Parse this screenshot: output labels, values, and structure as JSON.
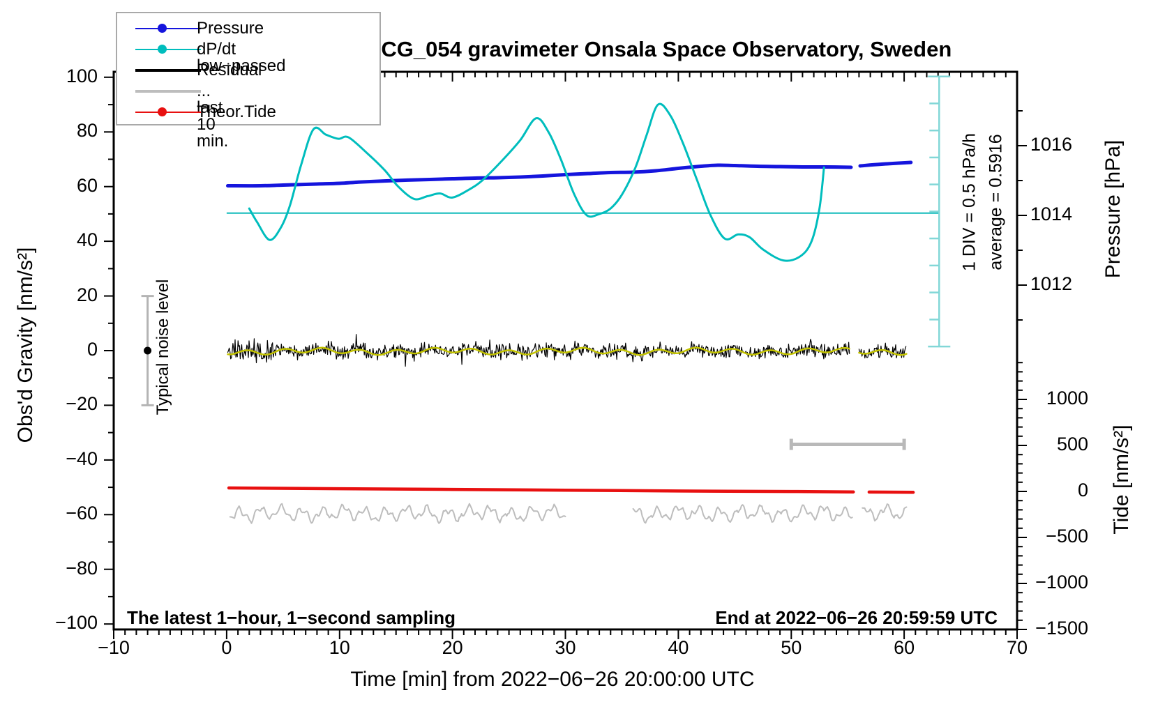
{
  "chart_data": {
    "type": "line",
    "title": "SCG_054 gravimeter Onsala Space Observatory, Sweden",
    "xlabel": "Time [min] from 2022−06−26 20:00:00 UTC",
    "footer_left": "The latest 1−hour, 1−second sampling",
    "footer_right": "End at 2022−06−26 20:59:59 UTC",
    "x_axis": {
      "range": [
        -10,
        70
      ],
      "major_ticks": [
        -10,
        0,
        10,
        20,
        30,
        40,
        50,
        60,
        70
      ],
      "minor_step": 1
    },
    "left_axis": {
      "label": "Obs'd Gravity [nm/s²]",
      "range": [
        -102,
        102
      ],
      "major_ticks": [
        -100,
        -80,
        -60,
        -40,
        -20,
        0,
        20,
        40,
        60,
        80,
        100
      ],
      "minor_step": 10
    },
    "right_pressure_axis": {
      "label": "Pressure [hPa]",
      "major_ticks": [
        1012,
        1014,
        1016
      ],
      "minor_ticks": [
        1011,
        1013,
        1015,
        1017
      ],
      "range_full_plot": [
        1002.12,
        1018.12
      ]
    },
    "right_tide_axis": {
      "label": "Tide [nm/s²]",
      "major_ticks": [
        -1500,
        -1000,
        -500,
        0,
        500,
        1000
      ],
      "minor_step": 100,
      "minor_top_value": 1400,
      "range_full_plot": [
        -1500,
        4561
      ]
    },
    "dpdt_scale": {
      "div_label": "1 DIV = 0.5 hPa/h",
      "avg_label": "average = 0.5916",
      "average_hpa_per_h": 0.5916,
      "div_hpa_per_h": 0.5,
      "avg_line_gravity": 50.3,
      "div_in_gravity_units": 9.87,
      "avg_line_t": [
        0,
        63.1
      ],
      "bar": {
        "time": 63.1,
        "gravity_top": 100.3,
        "gravity_bottom": 1.5,
        "divisions": 10
      }
    },
    "series": {
      "pressure": {
        "name": "Pressure",
        "color": "#1515dd",
        "unit": "hPa",
        "segments": [
          [
            0.1,
            55.3
          ],
          [
            56.1,
            60.6
          ]
        ],
        "points": [
          [
            0.1,
            1014.85
          ],
          [
            3,
            1014.85
          ],
          [
            5,
            1014.87
          ],
          [
            8,
            1014.9
          ],
          [
            10,
            1014.92
          ],
          [
            12,
            1014.96
          ],
          [
            15,
            1015.0
          ],
          [
            18,
            1015.03
          ],
          [
            20,
            1015.05
          ],
          [
            22,
            1015.07
          ],
          [
            24,
            1015.08
          ],
          [
            26,
            1015.1
          ],
          [
            28,
            1015.13
          ],
          [
            30,
            1015.17
          ],
          [
            32,
            1015.2
          ],
          [
            34,
            1015.23
          ],
          [
            36,
            1015.24
          ],
          [
            38,
            1015.28
          ],
          [
            40,
            1015.35
          ],
          [
            42,
            1015.41
          ],
          [
            43.5,
            1015.44
          ],
          [
            45,
            1015.43
          ],
          [
            47,
            1015.41
          ],
          [
            49,
            1015.4
          ],
          [
            51,
            1015.39
          ],
          [
            53,
            1015.39
          ],
          [
            55.3,
            1015.38
          ],
          [
            56.1,
            1015.42
          ],
          [
            58,
            1015.47
          ],
          [
            60.6,
            1015.52
          ]
        ]
      },
      "dpdt": {
        "name": "dP/dt low−passed",
        "color": "#00bdbd",
        "unit": "hPa/h",
        "segments": [
          [
            2.0,
            52.9
          ]
        ],
        "points": [
          [
            2.0,
            0.678
          ],
          [
            2.7,
            0.424
          ],
          [
            3.8,
            0.095
          ],
          [
            4.8,
            0.323
          ],
          [
            5.6,
            0.728
          ],
          [
            6.6,
            1.488
          ],
          [
            7.7,
            2.147
          ],
          [
            8.8,
            2.045
          ],
          [
            9.9,
            1.969
          ],
          [
            10.8,
            1.995
          ],
          [
            12.5,
            1.691
          ],
          [
            14,
            1.387
          ],
          [
            15.2,
            1.083
          ],
          [
            16.6,
            0.855
          ],
          [
            17.8,
            0.906
          ],
          [
            18.9,
            0.956
          ],
          [
            20,
            0.88
          ],
          [
            21.5,
            1.032
          ],
          [
            22.7,
            1.209
          ],
          [
            24.5,
            1.589
          ],
          [
            26,
            1.944
          ],
          [
            27.4,
            2.349
          ],
          [
            28.5,
            2.096
          ],
          [
            29.6,
            1.589
          ],
          [
            30.8,
            0.931
          ],
          [
            31.9,
            0.551
          ],
          [
            33,
            0.576
          ],
          [
            34,
            0.678
          ],
          [
            35,
            0.931
          ],
          [
            36.2,
            1.437
          ],
          [
            37.2,
            2.045
          ],
          [
            38.2,
            2.602
          ],
          [
            39.3,
            2.4
          ],
          [
            40.4,
            1.893
          ],
          [
            41.6,
            1.235
          ],
          [
            42.8,
            0.576
          ],
          [
            44.1,
            0.121
          ],
          [
            45.3,
            0.197
          ],
          [
            46.3,
            0.146
          ],
          [
            47.5,
            -0.082
          ],
          [
            49.3,
            -0.285
          ],
          [
            50.8,
            -0.209
          ],
          [
            51.8,
            0.07
          ],
          [
            52.5,
            0.678
          ],
          [
            52.9,
            1.437
          ]
        ],
        "avg_line_color": "#40c8c8",
        "scale_bar_color": "#82d7d7"
      },
      "residual": {
        "name": "Residual",
        "color": "#000000",
        "unit": "nm/s²",
        "mean": 0,
        "typical_amplitude": 2.5,
        "peak_amplitude": 7,
        "segments": [
          [
            0.1,
            55.2
          ],
          [
            56.0,
            60.2
          ]
        ]
      },
      "residual_smooth": {
        "color": "#c3c300",
        "mean": 0.3,
        "amplitude": 1.2,
        "segments": [
          [
            0.1,
            55.2
          ],
          [
            56.0,
            60.2
          ]
        ]
      },
      "last10_residual": {
        "name": "... last 10 min.",
        "color": "#bdbdbd",
        "gravity_center": -59.6,
        "amplitude": 2.9,
        "segments": [
          [
            0.3,
            30.1
          ],
          [
            36.0,
            55.5
          ],
          [
            56.3,
            60.3
          ]
        ]
      },
      "tide": {
        "name": "Theor.Tide",
        "color": "#e81010",
        "unit": "nm/s²",
        "segments": [
          [
            0.2,
            55.5
          ],
          [
            56.9,
            60.8
          ]
        ],
        "points": [
          [
            0.2,
            38
          ],
          [
            10,
            30
          ],
          [
            20,
            22
          ],
          [
            30,
            14
          ],
          [
            40,
            5
          ],
          [
            50,
            -1
          ],
          [
            55.5,
            -5
          ],
          [
            56.9,
            -7
          ],
          [
            60.8,
            -10
          ]
        ]
      }
    },
    "markers": {
      "noise_bar": {
        "label": "Typical noise level",
        "time": -7,
        "gravity_center": 0,
        "gravity_half_range": 20,
        "color": "#b4b4b4"
      },
      "last10_bar": {
        "t_start": 50,
        "t_end": 60,
        "gravity": -34.3,
        "color": "#b9b9b9"
      }
    }
  },
  "legend": {
    "entries": [
      {
        "label": "Pressure",
        "color": "#1515dd",
        "thick": false,
        "dot": true
      },
      {
        "label": "dP/dt low−passed",
        "color": "#00bdbd",
        "thick": false,
        "dot": true
      },
      {
        "label": "Residual",
        "color": "#000000",
        "thick": true,
        "dot": false
      },
      {
        "label": "... last 10 min.",
        "color": "#bdbdbd",
        "thick": true,
        "dot": false
      },
      {
        "label": "Theor.Tide",
        "color": "#e81010",
        "thick": false,
        "dot": true
      }
    ]
  }
}
